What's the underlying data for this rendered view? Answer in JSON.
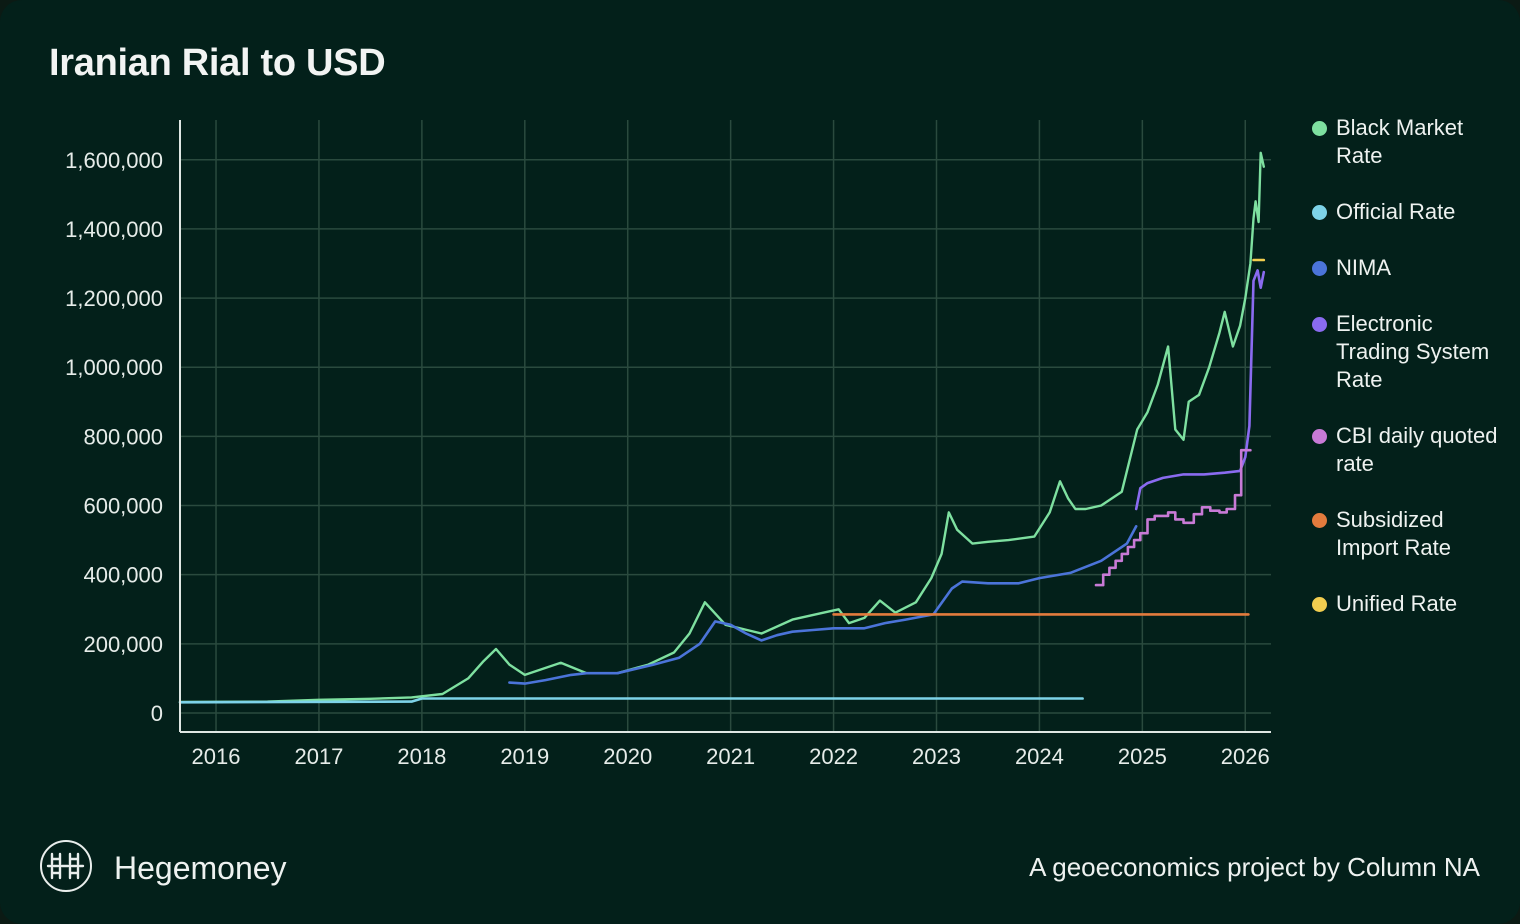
{
  "footer": {
    "brand": "Hegemoney",
    "credit": "A geoeconomics project by Column NA",
    "logo_icon": "hegemoney-logo-icon"
  },
  "colors": {
    "background": "#03201a",
    "grid": "#2a4a3e",
    "axis": "#dfe7e3",
    "text": "#eef2f0"
  },
  "chart_data": {
    "type": "line",
    "title": "Iranian Rial to USD",
    "xlabel": "",
    "ylabel": "",
    "xlim": [
      2015.65,
      2026.25
    ],
    "ylim": [
      -55000,
      1715000
    ],
    "yticks": [
      0,
      200000,
      400000,
      600000,
      800000,
      1000000,
      1200000,
      1400000,
      1600000
    ],
    "ytick_labels": [
      "0",
      "200,000",
      "400,000",
      "600,000",
      "800,000",
      "1,000,000",
      "1,200,000",
      "1,400,000",
      "1,600,000"
    ],
    "xticks": [
      2016,
      2017,
      2018,
      2019,
      2020,
      2021,
      2022,
      2023,
      2024,
      2025,
      2026
    ],
    "xtick_labels": [
      "2016",
      "2017",
      "2018",
      "2019",
      "2020",
      "2021",
      "2022",
      "2023",
      "2024",
      "2025",
      "2026"
    ],
    "grid": true,
    "legend_position": "right",
    "series": [
      {
        "name": "Black Market Rate",
        "color": "#7ee0a0",
        "x": [
          2015.65,
          2016.5,
          2017.0,
          2017.5,
          2017.9,
          2018.2,
          2018.45,
          2018.6,
          2018.72,
          2018.85,
          2019.0,
          2019.35,
          2019.6,
          2019.9,
          2020.2,
          2020.45,
          2020.6,
          2020.75,
          2020.95,
          2021.3,
          2021.6,
          2021.9,
          2022.05,
          2022.15,
          2022.3,
          2022.45,
          2022.6,
          2022.8,
          2022.95,
          2023.05,
          2023.12,
          2023.2,
          2023.35,
          2023.5,
          2023.7,
          2023.95,
          2024.1,
          2024.2,
          2024.28,
          2024.35,
          2024.45,
          2024.6,
          2024.8,
          2024.95,
          2025.05,
          2025.15,
          2025.25,
          2025.32,
          2025.4,
          2025.45,
          2025.55,
          2025.65,
          2025.75,
          2025.8,
          2025.88,
          2025.95,
          2026.0,
          2026.05,
          2026.08,
          2026.1,
          2026.13,
          2026.15,
          2026.18
        ],
        "y": [
          32000,
          33000,
          38000,
          41000,
          45000,
          55000,
          100000,
          150000,
          185000,
          140000,
          110000,
          145000,
          115000,
          115000,
          140000,
          175000,
          230000,
          320000,
          255000,
          230000,
          270000,
          290000,
          300000,
          260000,
          275000,
          325000,
          290000,
          320000,
          390000,
          460000,
          580000,
          530000,
          490000,
          495000,
          500000,
          510000,
          580000,
          670000,
          620000,
          590000,
          590000,
          600000,
          640000,
          820000,
          870000,
          950000,
          1060000,
          820000,
          790000,
          900000,
          920000,
          1000000,
          1100000,
          1160000,
          1060000,
          1120000,
          1200000,
          1300000,
          1430000,
          1480000,
          1420000,
          1620000,
          1580000
        ]
      },
      {
        "name": "Official Rate",
        "color": "#7dd3e8",
        "x": [
          2015.65,
          2017.9,
          2018.0,
          2024.42
        ],
        "y": [
          31000,
          33000,
          42000,
          42000
        ]
      },
      {
        "name": "NIMA",
        "color": "#4b74d9",
        "x": [
          2018.85,
          2019.0,
          2019.2,
          2019.45,
          2019.6,
          2019.9,
          2020.25,
          2020.5,
          2020.7,
          2020.85,
          2021.0,
          2021.15,
          2021.3,
          2021.45,
          2021.6,
          2021.8,
          2022.0,
          2022.3,
          2022.5,
          2022.7,
          2022.97,
          2023.15,
          2023.25,
          2023.5,
          2023.8,
          2024.0,
          2024.3,
          2024.6,
          2024.85,
          2024.94
        ],
        "y": [
          88000,
          85000,
          95000,
          110000,
          115000,
          115000,
          140000,
          160000,
          200000,
          265000,
          255000,
          230000,
          210000,
          225000,
          235000,
          240000,
          245000,
          245000,
          260000,
          270000,
          285000,
          360000,
          380000,
          375000,
          375000,
          390000,
          405000,
          440000,
          490000,
          540000
        ]
      },
      {
        "name": "Electronic Trading System Rate",
        "color": "#8a6bf0",
        "x": [
          2024.94,
          2024.98,
          2025.05,
          2025.2,
          2025.4,
          2025.6,
          2025.8,
          2025.95,
          2026.0,
          2026.04,
          2026.08,
          2026.12,
          2026.15,
          2026.18
        ],
        "y": [
          590000,
          650000,
          665000,
          680000,
          690000,
          690000,
          695000,
          700000,
          740000,
          830000,
          1250000,
          1280000,
          1230000,
          1275000
        ]
      },
      {
        "name": "CBI daily quoted rate",
        "color": "#c87ad6",
        "x": [
          2024.55,
          2024.62,
          2024.68,
          2024.74,
          2024.8,
          2024.86,
          2024.92,
          2024.98,
          2025.05,
          2025.12,
          2025.25,
          2025.32,
          2025.4,
          2025.5,
          2025.58,
          2025.66,
          2025.75,
          2025.82,
          2025.9,
          2025.96,
          2026.05
        ],
        "y": [
          370000,
          400000,
          420000,
          440000,
          460000,
          480000,
          500000,
          520000,
          560000,
          570000,
          580000,
          560000,
          550000,
          575000,
          595000,
          585000,
          580000,
          590000,
          630000,
          760000,
          760000
        ]
      },
      {
        "name": "Subsidized Import Rate",
        "color": "#e37b3d",
        "x": [
          2022.0,
          2026.03
        ],
        "y": [
          285000,
          285000
        ]
      },
      {
        "name": "Unified Rate",
        "color": "#f2cd4f",
        "x": [
          2026.08,
          2026.18
        ],
        "y": [
          1310000,
          1310000
        ]
      }
    ]
  }
}
